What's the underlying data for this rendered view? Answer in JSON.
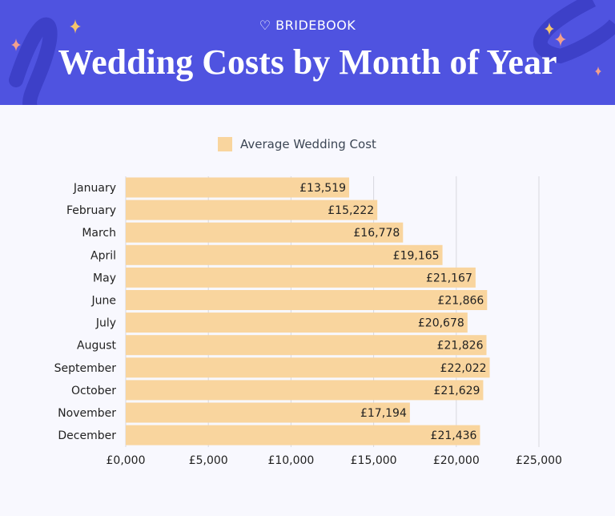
{
  "header": {
    "logo": "BRIDEBOOK",
    "title": "Wedding Costs by Month of Year"
  },
  "colors": {
    "header_bg": "#4f53e0",
    "bar": "#f9d59e",
    "text": "#222222"
  },
  "chart_data": {
    "type": "bar",
    "orientation": "horizontal",
    "categories": [
      "January",
      "February",
      "March",
      "April",
      "May",
      "June",
      "July",
      "August",
      "September",
      "October",
      "November",
      "December"
    ],
    "series": [
      {
        "name": "Average Wedding Cost",
        "values": [
          13519,
          15222,
          16778,
          19165,
          21167,
          21866,
          20678,
          21826,
          22022,
          21629,
          17194,
          21436
        ]
      }
    ],
    "data_labels": [
      "£13,519",
      "£15,222",
      "£16,778",
      "£19,165",
      "£21,167",
      "£21,866",
      "£20,678",
      "£21,826",
      "£22,022",
      "£21,629",
      "£17,194",
      "£21,436"
    ],
    "xlim": [
      0,
      25000
    ],
    "xticks": [
      0,
      5000,
      10000,
      15000,
      20000,
      25000
    ],
    "xtick_labels": [
      "£0,000",
      "£5,000",
      "£10,000",
      "£15,000",
      "£20,000",
      "£25,000"
    ],
    "grid": "vertical",
    "legend": "top-center"
  }
}
